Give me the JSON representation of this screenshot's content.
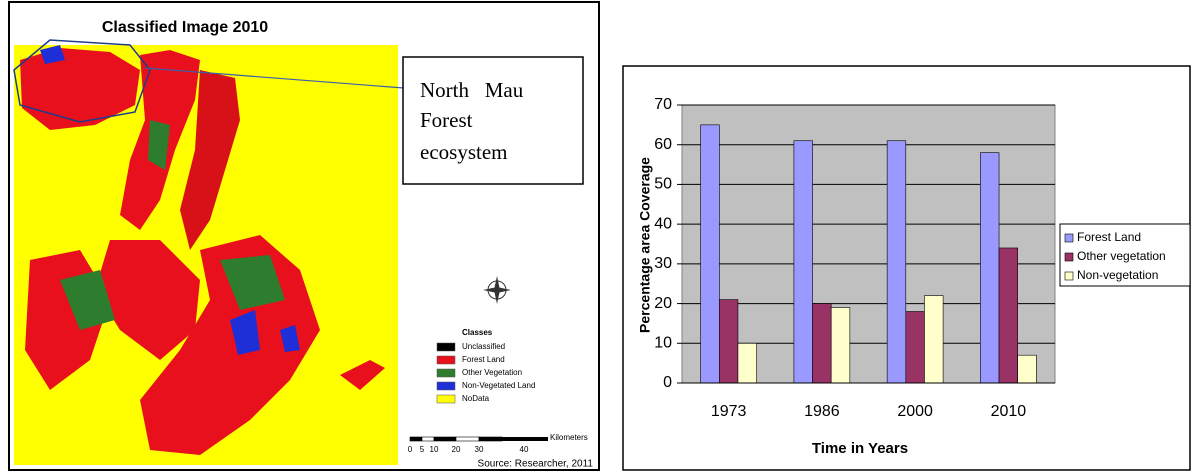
{
  "map": {
    "title": "Classified Image 2010",
    "callout": [
      "North   Mau",
      "Forest",
      "ecosystem"
    ],
    "legend_title": "Classes",
    "legend": [
      {
        "label": "Unclassified",
        "color": "#000000"
      },
      {
        "label": "Forest Land",
        "color": "#e8101c"
      },
      {
        "label": "Other Vegetation",
        "color": "#2e7d2e"
      },
      {
        "label": "Non-Vegetated Land",
        "color": "#1f2fd8"
      },
      {
        "label": "NoData",
        "color": "#ffff00"
      }
    ],
    "scale_labels": [
      "0",
      "5",
      "10",
      "20",
      "30",
      "40"
    ],
    "scale_unit": "Kilometers",
    "source": "Source: Researcher, 2011"
  },
  "chart_data": {
    "type": "bar",
    "xlabel": "Time in Years",
    "ylabel": "Percentage area Coverage",
    "categories": [
      "1973",
      "1986",
      "2000",
      "2010"
    ],
    "series": [
      {
        "name": "Forest Land",
        "color": "#9999ff",
        "values": [
          65,
          61,
          61,
          58
        ]
      },
      {
        "name": "Other vegetation",
        "color": "#993366",
        "values": [
          21,
          20,
          18,
          34
        ]
      },
      {
        "name": "Non-vegetation",
        "color": "#ffffcc",
        "values": [
          10,
          19,
          22,
          7
        ]
      }
    ],
    "ylim": [
      0,
      70
    ],
    "yticks": [
      0,
      10,
      20,
      30,
      40,
      50,
      60,
      70
    ],
    "grid": true,
    "legend": "right"
  }
}
